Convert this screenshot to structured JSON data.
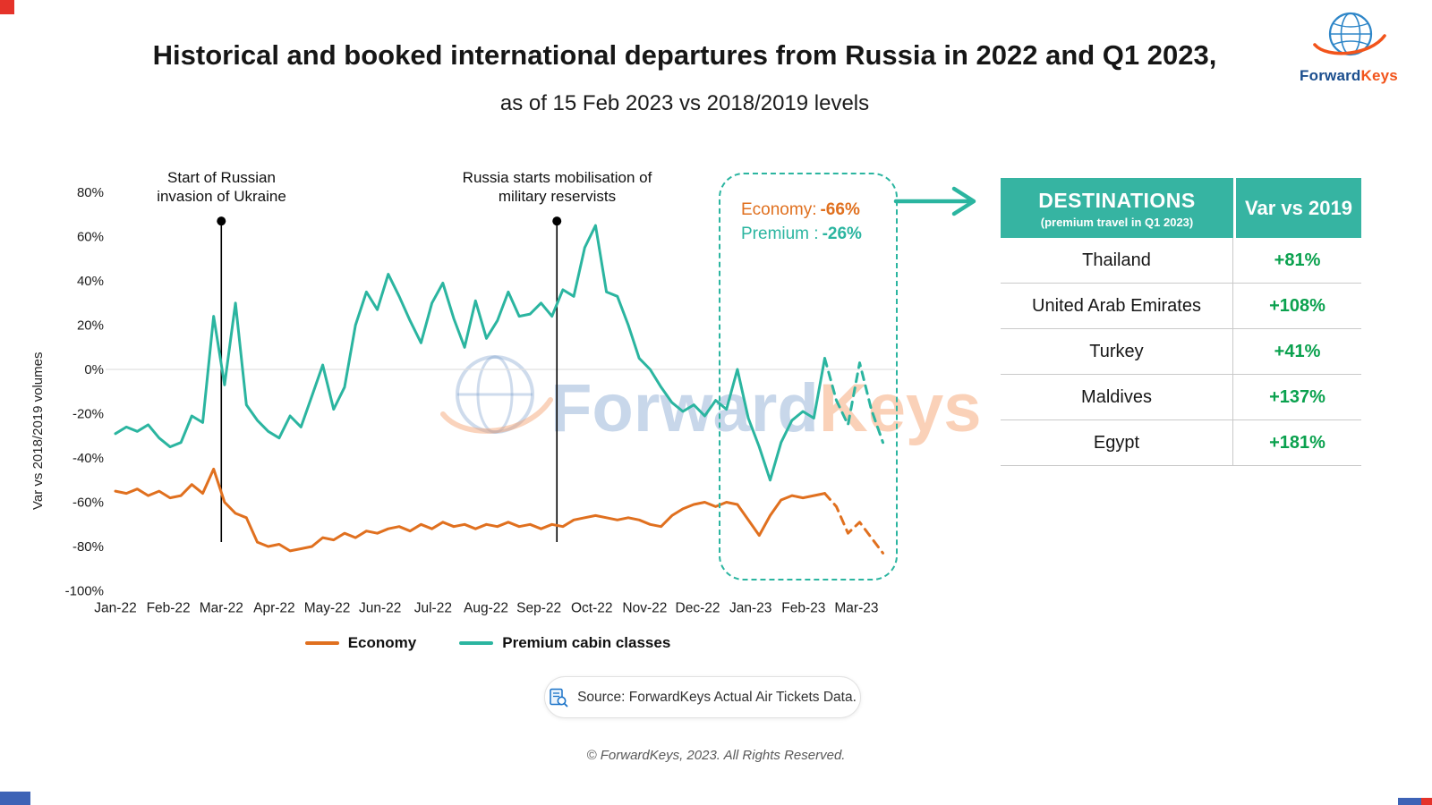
{
  "page": {
    "title": "Historical and booked international departures from Russia in 2022 and Q1 2023,",
    "subtitle": "as of 15 Feb 2023 vs 2018/2019 levels",
    "source_text": "Source: ForwardKeys Actual Air Tickets Data.",
    "footer": "© ForwardKeys, 2023. All Rights Reserved."
  },
  "logo": {
    "part1": "Forward",
    "part2": "Keys"
  },
  "watermark": {
    "part1": "Forward",
    "part2": "Keys"
  },
  "colors": {
    "economy": "#E0701F",
    "premium": "#2BB5A0",
    "positive": "#0AA14E",
    "table_header": "#36B4A2",
    "accent_red": "#E5332A",
    "accent_blue": "#3D63B6"
  },
  "highlight": {
    "economy_label": "Economy:",
    "economy_value": "-66%",
    "premium_label": "Premium :",
    "premium_value": "-26%"
  },
  "legend": [
    {
      "label": "Economy",
      "color": "#E0701F"
    },
    {
      "label": "Premium cabin classes",
      "color": "#2BB5A0"
    }
  ],
  "table": {
    "header": {
      "title": "DESTINATIONS",
      "subtitle": "(premium travel in Q1 2023)",
      "col2": "Var vs 2019"
    },
    "rows": [
      {
        "destination": "Thailand",
        "var": "+81%"
      },
      {
        "destination": "United Arab Emirates",
        "var": "+108%"
      },
      {
        "destination": "Turkey",
        "var": "+41%"
      },
      {
        "destination": "Maldives",
        "var": "+137%"
      },
      {
        "destination": "Egypt",
        "var": "+181%"
      }
    ]
  },
  "chart_data": {
    "type": "line",
    "title": "Historical and booked international departures from Russia in 2022 and Q1 2023, as of 15 Feb 2023 vs 2018/2019 levels",
    "ylabel": "Var vs 2018/2019 volumes",
    "ylim": [
      -100,
      80
    ],
    "y_ticks": [
      80,
      60,
      40,
      20,
      0,
      -20,
      -40,
      -60,
      -80,
      -100
    ],
    "x_labels": [
      "Jan-22",
      "Feb-22",
      "Mar-22",
      "Apr-22",
      "May-22",
      "Jun-22",
      "Jul-22",
      "Aug-22",
      "Sep-22",
      "Oct-22",
      "Nov-22",
      "Dec-22",
      "Jan-23",
      "Feb-23",
      "Mar-23"
    ],
    "solid_x_range": [
      0,
      13.4
    ],
    "dashed_x_range": [
      13.4,
      14.5
    ],
    "grid": "zero-line-only",
    "legend_position": "bottom",
    "series": [
      {
        "name": "Economy",
        "color": "#E0701F",
        "solid": [
          -55,
          -56,
          -54,
          -57,
          -55,
          -58,
          -57,
          -52,
          -56,
          -45,
          -60,
          -65,
          -67,
          -78,
          -80,
          -79,
          -82,
          -81,
          -80,
          -76,
          -77,
          -74,
          -76,
          -73,
          -74,
          -72,
          -71,
          -73,
          -70,
          -72,
          -69,
          -71,
          -70,
          -72,
          -70,
          -71,
          -69,
          -71,
          -70,
          -72,
          -70,
          -71,
          -68,
          -67,
          -66,
          -67,
          -68,
          -67,
          -68,
          -70,
          -71,
          -66,
          -63,
          -61,
          -60,
          -62,
          -60,
          -61,
          -68,
          -75,
          -66,
          -59,
          -57,
          -58,
          -57,
          -56
        ],
        "dashed": [
          -56,
          -62,
          -74,
          -69,
          -76,
          -83
        ]
      },
      {
        "name": "Premium cabin classes",
        "color": "#2BB5A0",
        "solid": [
          -29,
          -26,
          -28,
          -25,
          -31,
          -35,
          -33,
          -21,
          -24,
          24,
          -7,
          30,
          -16,
          -23,
          -28,
          -31,
          -21,
          -26,
          -12,
          2,
          -18,
          -8,
          20,
          35,
          27,
          43,
          33,
          22,
          12,
          30,
          39,
          23,
          10,
          31,
          14,
          22,
          35,
          24,
          25,
          30,
          24,
          36,
          33,
          55,
          65,
          35,
          33,
          20,
          5,
          0,
          -8,
          -15,
          -19,
          -16,
          -21,
          -14,
          -18,
          0,
          -22,
          -35,
          -50,
          -33,
          -23,
          -19,
          -22,
          5
        ],
        "dashed": [
          5,
          -14,
          -25,
          3,
          -18,
          -33
        ]
      }
    ],
    "annotations": [
      {
        "x": 2,
        "label": "Start of Russian invasion of Ukraine",
        "dot_y": 67,
        "line_bottom": -78
      },
      {
        "x": 8.34,
        "label": "Russia starts mobilisation of military reservists",
        "dot_y": 67,
        "line_bottom": -78
      }
    ]
  }
}
